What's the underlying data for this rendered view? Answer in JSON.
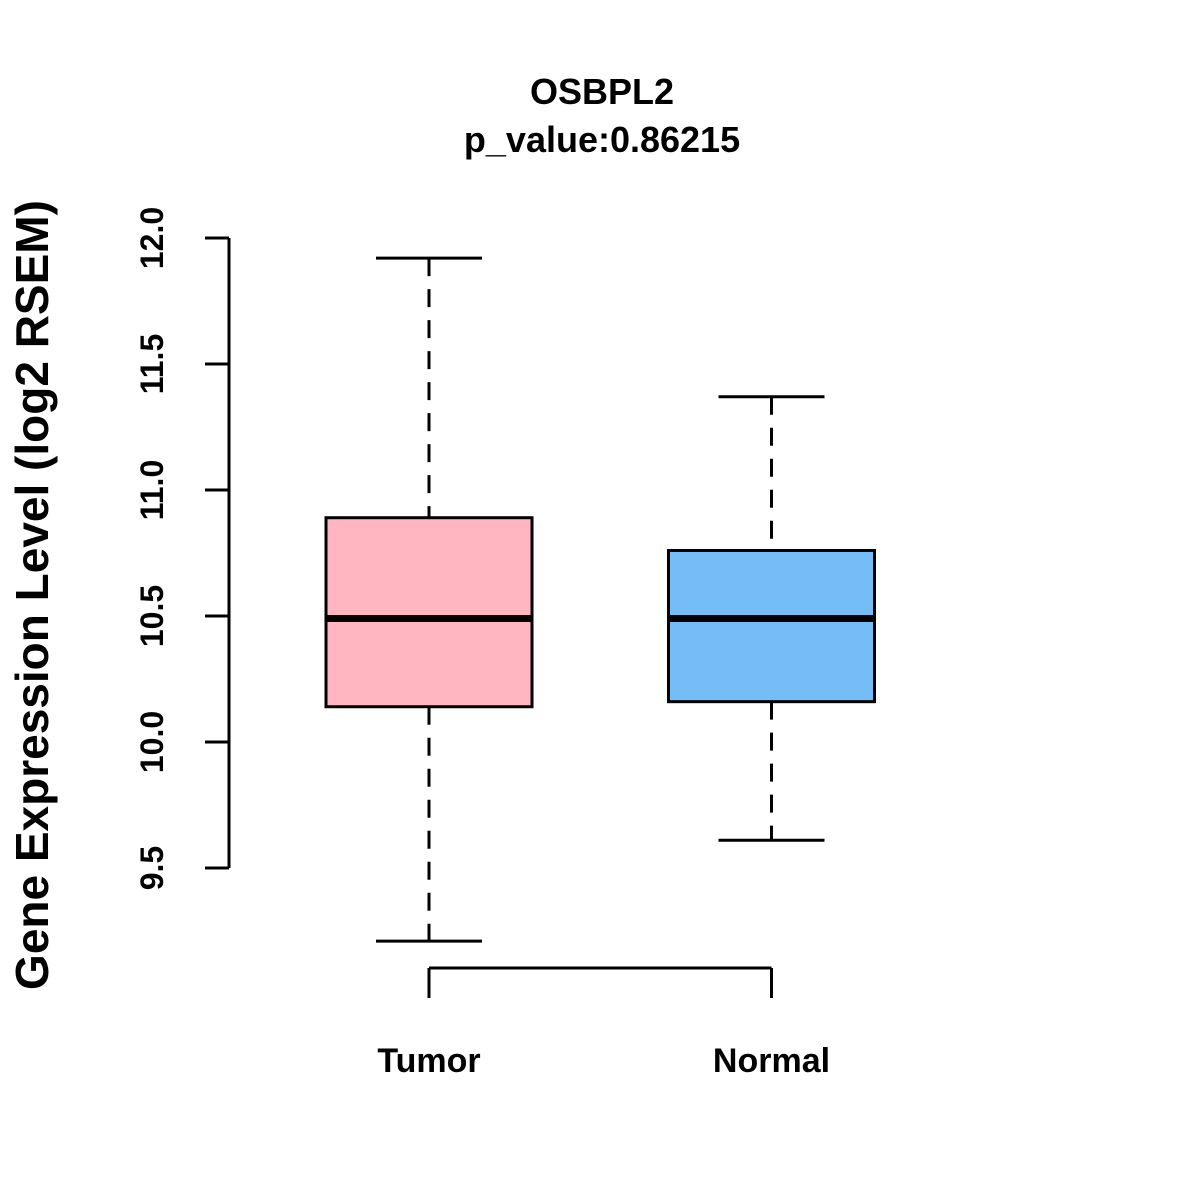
{
  "title": {
    "gene": "OSBPL2",
    "p_value_line": "p_value:0.86215"
  },
  "chart_data": {
    "type": "boxplot",
    "title": "OSBPL2",
    "subtitle": "p_value:0.86215",
    "ylabel": "Gene Expression Level (log2 RSEM)",
    "xlabel": "",
    "ylim": [
      9.5,
      12.0
    ],
    "y_ticks": [
      9.5,
      10.0,
      10.5,
      11.0,
      11.5,
      12.0
    ],
    "grid": false,
    "legend": "none",
    "categories": [
      "Tumor",
      "Normal"
    ],
    "series": [
      {
        "name": "Tumor",
        "color": "#FFB6C1",
        "whisker_low": 9.21,
        "q1": 10.14,
        "median": 10.49,
        "q3": 10.89,
        "whisker_high": 11.92
      },
      {
        "name": "Normal",
        "color": "#74BDF7",
        "whisker_low": 9.61,
        "q1": 10.16,
        "median": 10.49,
        "q3": 10.76,
        "whisker_high": 11.37
      }
    ]
  },
  "colors": {
    "stroke": "#000000",
    "background": "#FFFFFF",
    "tumor_box": "#FFB6C1",
    "normal_box": "#74BDF7"
  }
}
